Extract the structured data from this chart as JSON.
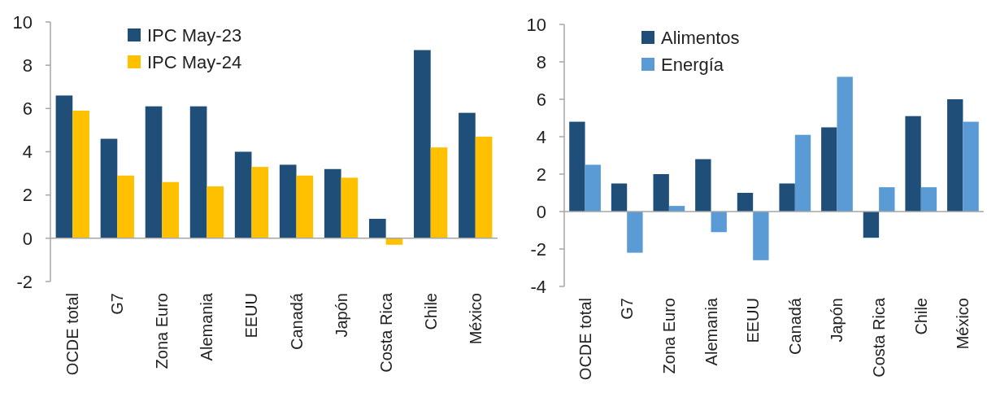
{
  "chart_data": [
    {
      "type": "bar",
      "categories": [
        "OCDE total",
        "G7",
        "Zona Euro",
        "Alemania",
        "EEUU",
        "Canadá",
        "Japón",
        "Costa Rica",
        "Chile",
        "México"
      ],
      "series": [
        {
          "name": "IPC May-23",
          "color": "#1f4e79",
          "values": [
            6.6,
            4.6,
            6.1,
            6.1,
            4.0,
            3.4,
            3.2,
            0.9,
            8.7,
            5.8
          ]
        },
        {
          "name": "IPC May-24",
          "color": "#ffc000",
          "values": [
            5.9,
            2.9,
            2.6,
            2.4,
            3.3,
            2.9,
            2.8,
            -0.3,
            4.2,
            4.7
          ]
        }
      ],
      "ylim": [
        -2,
        10
      ],
      "yticks": [
        -2,
        0,
        2,
        4,
        6,
        8,
        10
      ],
      "legend": "top left"
    },
    {
      "type": "bar",
      "categories": [
        "OCDE total",
        "G7",
        "Zona Euro",
        "Alemania",
        "EEUU",
        "Canadá",
        "Japón",
        "Costa Rica",
        "Chile",
        "México"
      ],
      "series": [
        {
          "name": "Alimentos",
          "color": "#1f4e79",
          "values": [
            4.8,
            1.5,
            2.0,
            2.8,
            1.0,
            1.5,
            4.5,
            -1.4,
            5.1,
            6.0
          ]
        },
        {
          "name": "Energía",
          "color": "#5b9bd5",
          "values": [
            2.5,
            -2.2,
            0.3,
            -1.1,
            -2.6,
            4.1,
            7.2,
            1.3,
            1.3,
            4.8
          ]
        }
      ],
      "ylim": [
        -4,
        10
      ],
      "yticks": [
        -4,
        -2,
        0,
        2,
        4,
        6,
        8,
        10
      ],
      "legend": "top left"
    }
  ]
}
